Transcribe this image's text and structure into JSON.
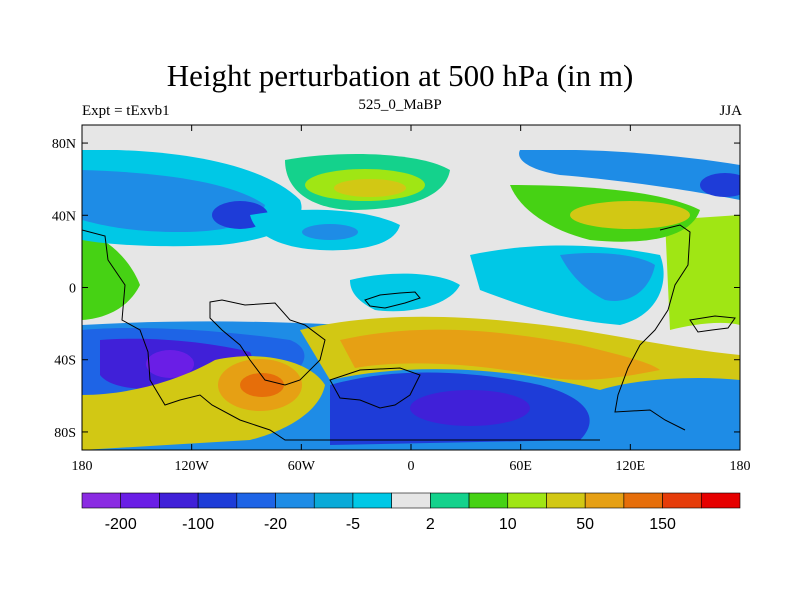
{
  "header": {
    "title": "Height perturbation at 500 hPa (in m)",
    "left": "Expt = tExvb1",
    "center": "525_0_MaBP",
    "right": "JJA"
  },
  "chart_data": {
    "type": "heatmap",
    "title": "Height perturbation at 500 hPa (in m)",
    "subtitle": "525_0_MaBP",
    "x_ticks": [
      "180",
      "120W",
      "60W",
      "0",
      "60E",
      "120E",
      "180"
    ],
    "y_ticks": [
      "80N",
      "40N",
      "0",
      "40S",
      "80S"
    ],
    "xlim": [
      -180,
      180
    ],
    "ylim": [
      -90,
      90
    ],
    "colorbar": {
      "levels": [
        -200,
        -150,
        -100,
        -50,
        -20,
        -10,
        -5,
        -2,
        2,
        5,
        10,
        20,
        50,
        100,
        150,
        200
      ],
      "labels": [
        "-200",
        "-100",
        "-20",
        "-5",
        "2",
        "10",
        "50",
        "150"
      ],
      "colors": [
        "#8a2be2",
        "#6a1ee6",
        "#4020d8",
        "#1e3cd8",
        "#1e64e6",
        "#1e8ce6",
        "#0aaad8",
        "#00c8e6",
        "#e6e6e6",
        "#14d28c",
        "#46d214",
        "#a0e614",
        "#d2c814",
        "#e6a014",
        "#e66e0a",
        "#e63c0a",
        "#e60000"
      ]
    },
    "features": [
      {
        "region": "Southern Pacific near 120W, 40S",
        "level": "minimum, < -150"
      },
      {
        "region": "South Atlantic / southern Indian Ocean 60S",
        "level": "-100 to -50"
      },
      {
        "region": "South Pacific near 80W, 50S",
        "level": "maximum, 100 to 150"
      },
      {
        "region": "Southern subtropics 20S-40S, 40W-120E",
        "level": "50 to 100"
      },
      {
        "region": "North Pacific / North America 40N-60N",
        "level": "-50 to -20"
      },
      {
        "region": "North Atlantic near 20W, 60N",
        "level": "20 to 50"
      },
      {
        "region": "East Asia 40N",
        "level": "20 to 50"
      },
      {
        "region": "Equatorial belt 10N-20S",
        "level": "-2 to 2"
      }
    ],
    "grid": false
  }
}
